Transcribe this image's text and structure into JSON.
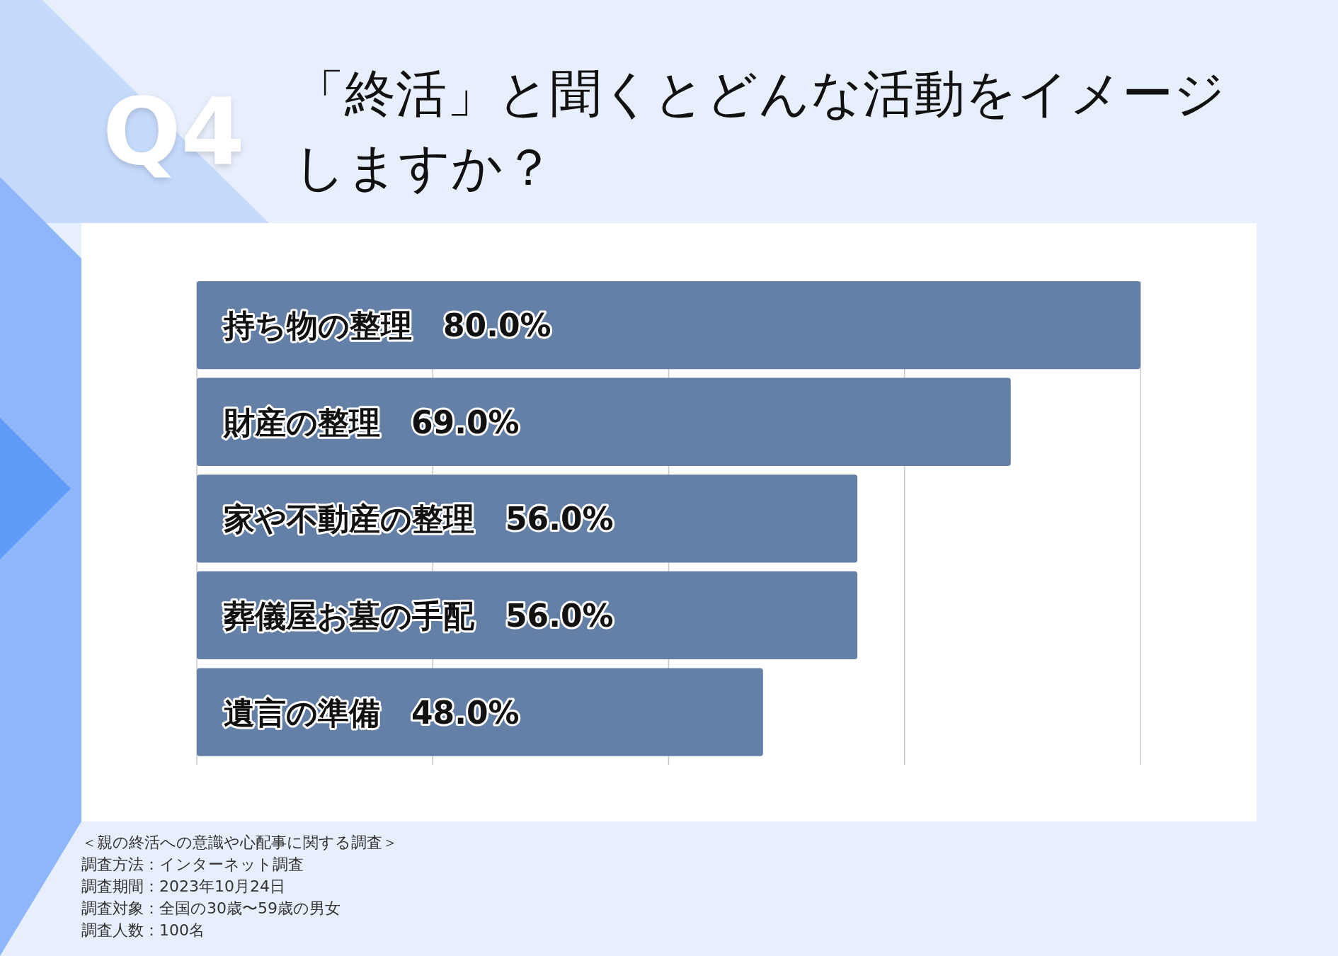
{
  "chart_data": {
    "type": "bar",
    "orientation": "horizontal",
    "title": "「終活」と聞くとどんな活動をイメージしますか？",
    "categories": [
      "持ち物の整理",
      "財産の整理",
      "家や不動産の整理",
      "葬儀屋お墓の手配",
      "遺言の準備"
    ],
    "values": [
      80,
      69,
      56,
      56,
      48
    ],
    "value_labels": [
      "80.0%",
      "69.0%",
      "56.0%",
      "56.0%",
      "48.0%"
    ],
    "color": "#6480a6",
    "grid": "x",
    "annotations": [
      "Q4",
      "＜親の終活への意識や心配事に関する調査＞",
      "調査方法：インターネット調査",
      "調査期間：2023年10月24日",
      "調査対象：全国の30歳〜59歳の男女",
      "調査人数：100名"
    ]
  }
}
